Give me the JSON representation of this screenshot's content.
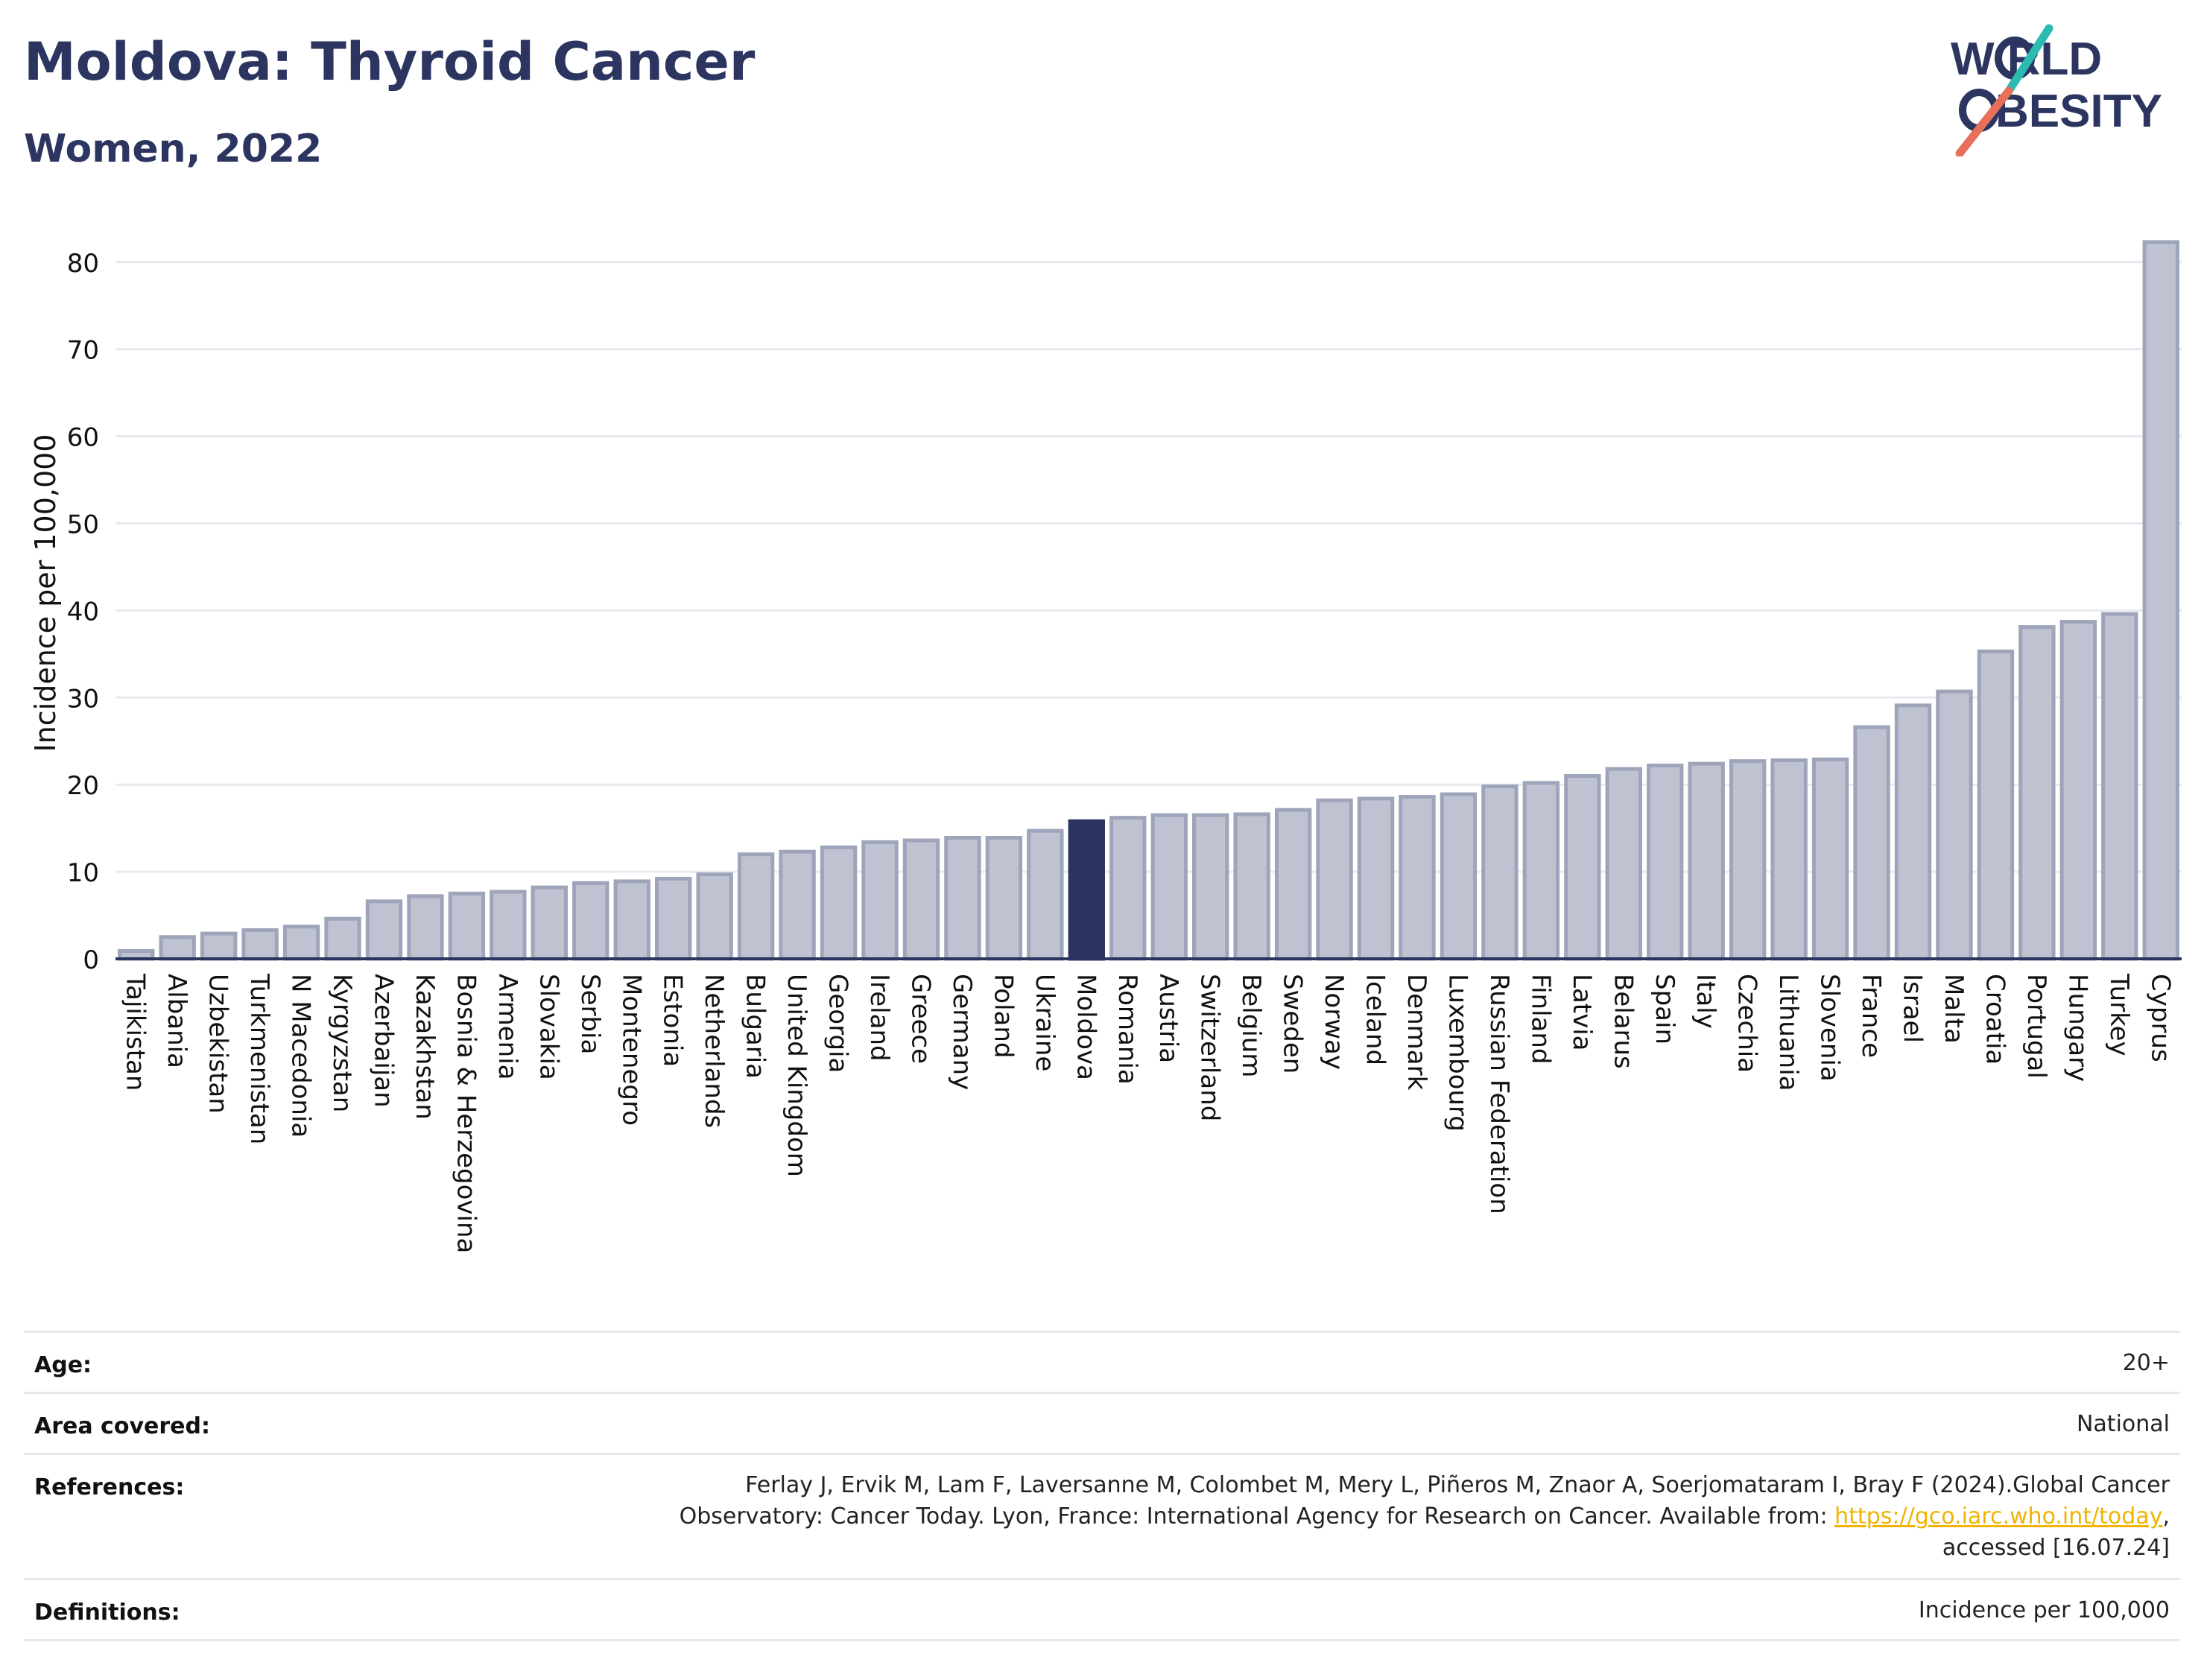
{
  "header": {
    "title": "Moldova: Thyroid Cancer",
    "subtitle": "Women, 2022"
  },
  "logo": {
    "line1": "W RLD",
    "line2": "BESITY",
    "text": "WORLD OBESITY",
    "colors": {
      "navy": "#2b3560",
      "teal": "#2bbbb0",
      "coral": "#e8705a"
    }
  },
  "colors": {
    "bar_fill": "#bfc3d1",
    "bar_stroke": "#9ea4ba",
    "highlight_fill": "#2b3560",
    "axis": "#2b3560",
    "grid": "#e8eaf0"
  },
  "chart_data": {
    "type": "bar",
    "ylabel": "Incidence per 100,000",
    "ylim": [
      0,
      85
    ],
    "yticks": [
      0,
      10,
      20,
      30,
      40,
      50,
      60,
      70,
      80
    ],
    "grid": true,
    "highlight": "Moldova",
    "categories": [
      "Tajikistan",
      "Albania",
      "Uzbekistan",
      "Turkmenistan",
      "N Macedonia",
      "Kyrgyzstan",
      "Azerbaijan",
      "Kazakhstan",
      "Bosnia & Herzegovina",
      "Armenia",
      "Slovakia",
      "Serbia",
      "Montenegro",
      "Estonia",
      "Netherlands",
      "Bulgaria",
      "United Kingdom",
      "Georgia",
      "Ireland",
      "Greece",
      "Germany",
      "Poland",
      "Ukraine",
      "Moldova",
      "Romania",
      "Austria",
      "Switzerland",
      "Belgium",
      "Sweden",
      "Norway",
      "Iceland",
      "Denmark",
      "Luxembourg",
      "Russian Federation",
      "Finland",
      "Latvia",
      "Belarus",
      "Spain",
      "Italy",
      "Czechia",
      "Lithuania",
      "Slovenia",
      "France",
      "Israel",
      "Malta",
      "Croatia",
      "Portugal",
      "Hungary",
      "Turkey",
      "Cyprus"
    ],
    "values": [
      0.9,
      2.5,
      2.9,
      3.3,
      3.7,
      4.6,
      6.6,
      7.2,
      7.5,
      7.7,
      8.2,
      8.7,
      8.9,
      9.2,
      9.7,
      12.0,
      12.3,
      12.8,
      13.4,
      13.6,
      13.9,
      13.9,
      14.7,
      15.8,
      16.2,
      16.5,
      16.5,
      16.6,
      17.1,
      18.2,
      18.4,
      18.6,
      18.9,
      19.8,
      20.2,
      21.0,
      21.8,
      22.2,
      22.4,
      22.7,
      22.8,
      22.9,
      26.6,
      29.1,
      30.7,
      35.3,
      38.1,
      38.7,
      39.6,
      82.3
    ]
  },
  "info": {
    "age_label": "Age:",
    "age_value": "20+",
    "area_label": "Area covered:",
    "area_value": "National",
    "references_label": "References:",
    "references_line1": "Ferlay J, Ervik M, Lam F, Laversanne M, Colombet M, Mery L, Piñeros M, Znaor A, Soerjomataram I, Bray F (2024).Global Cancer",
    "references_line2_prefix": "Observatory: Cancer Today. Lyon, France: International Agency for Research on Cancer. Available from: ",
    "references_link": "https://gco.iarc.who.int/today",
    "references_line2_suffix": ",",
    "references_line3": "accessed [16.07.24]",
    "definitions_label": "Definitions:",
    "definitions_value": "Incidence per 100,000"
  }
}
